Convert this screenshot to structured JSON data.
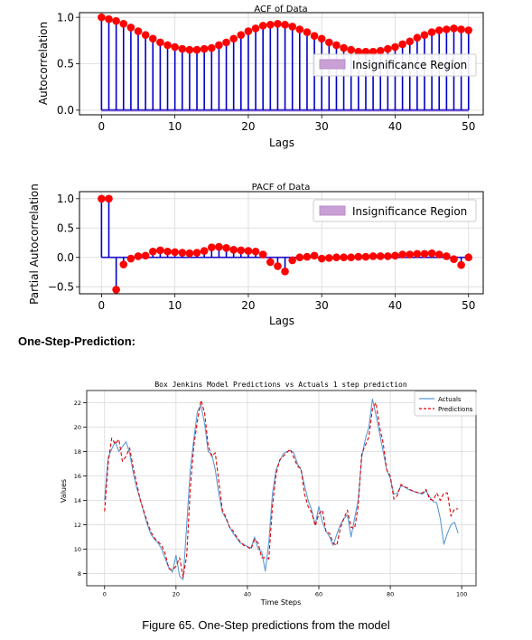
{
  "section_heading": "One-Step-Prediction:",
  "caption": "Figure 65. One-Step predictions from the model",
  "colors": {
    "stem": "#0000c8",
    "marker": "#ff0000",
    "confidence": "#c9a0d6",
    "actuals": "#5b9bd5",
    "predictions": "#e00000"
  },
  "chart_data": [
    {
      "type": "stem",
      "title": "ACF of Data",
      "xlabel": "Lags",
      "ylabel": "Autocorrelation",
      "xlim": [
        -3,
        52
      ],
      "ylim": [
        -0.05,
        1.05
      ],
      "xticks": [
        0,
        10,
        20,
        30,
        40,
        50
      ],
      "yticks": [
        0.0,
        0.5,
        1.0
      ],
      "ytick_labels": [
        "0.0",
        "0.5",
        "1.0"
      ],
      "grid": true,
      "legend": {
        "position": "right",
        "entries": [
          "Insignificance Region"
        ]
      },
      "confidence_band": [
        -0.02,
        0.02
      ],
      "x": [
        0,
        1,
        2,
        3,
        4,
        5,
        6,
        7,
        8,
        9,
        10,
        11,
        12,
        13,
        14,
        15,
        16,
        17,
        18,
        19,
        20,
        21,
        22,
        23,
        24,
        25,
        26,
        27,
        28,
        29,
        30,
        31,
        32,
        33,
        34,
        35,
        36,
        37,
        38,
        39,
        40,
        41,
        42,
        43,
        44,
        45,
        46,
        47,
        48,
        49,
        50
      ],
      "values": [
        1.0,
        0.98,
        0.96,
        0.93,
        0.89,
        0.85,
        0.81,
        0.77,
        0.73,
        0.7,
        0.68,
        0.66,
        0.65,
        0.65,
        0.66,
        0.67,
        0.7,
        0.73,
        0.77,
        0.81,
        0.85,
        0.88,
        0.91,
        0.92,
        0.93,
        0.92,
        0.9,
        0.87,
        0.84,
        0.8,
        0.77,
        0.73,
        0.7,
        0.67,
        0.65,
        0.63,
        0.63,
        0.63,
        0.64,
        0.66,
        0.68,
        0.71,
        0.74,
        0.78,
        0.81,
        0.84,
        0.86,
        0.87,
        0.88,
        0.87,
        0.86
      ]
    },
    {
      "type": "stem",
      "title": "PACF of Data",
      "xlabel": "Lags",
      "ylabel": "Partial Autocorrelation",
      "xlim": [
        -3,
        52
      ],
      "ylim": [
        -0.62,
        1.12
      ],
      "xticks": [
        0,
        10,
        20,
        30,
        40,
        50
      ],
      "yticks": [
        -0.5,
        0.0,
        0.5,
        1.0
      ],
      "ytick_labels": [
        "−0.5",
        "0.0",
        "0.5",
        "1.0"
      ],
      "grid": true,
      "legend": {
        "position": "top-right",
        "entries": [
          "Insignificance Region"
        ]
      },
      "confidence_band": [
        -0.02,
        0.02
      ],
      "x": [
        0,
        1,
        2,
        3,
        4,
        5,
        6,
        7,
        8,
        9,
        10,
        11,
        12,
        13,
        14,
        15,
        16,
        17,
        18,
        19,
        20,
        21,
        22,
        23,
        24,
        25,
        26,
        27,
        28,
        29,
        30,
        31,
        32,
        33,
        34,
        35,
        36,
        37,
        38,
        39,
        40,
        41,
        42,
        43,
        44,
        45,
        46,
        47,
        48,
        49,
        50
      ],
      "values": [
        1.0,
        1.0,
        -0.55,
        -0.12,
        -0.02,
        0.02,
        0.03,
        0.1,
        0.12,
        0.1,
        0.09,
        0.08,
        0.07,
        0.08,
        0.11,
        0.17,
        0.18,
        0.16,
        0.13,
        0.12,
        0.11,
        0.1,
        0.05,
        -0.08,
        -0.15,
        -0.24,
        -0.05,
        0.0,
        0.01,
        0.03,
        -0.02,
        -0.01,
        0.0,
        0.0,
        0.0,
        0.01,
        0.01,
        0.02,
        0.02,
        0.02,
        0.03,
        0.05,
        0.05,
        0.06,
        0.06,
        0.07,
        0.05,
        0.02,
        -0.03,
        -0.13,
        0.0
      ]
    },
    {
      "type": "line",
      "title": "Box Jenkins Model Predictions vs Actuals 1 step prediction",
      "xlabel": "Time Steps",
      "ylabel": "Values",
      "xlim": [
        -5,
        104
      ],
      "ylim": [
        7.0,
        23.0
      ],
      "xticks": [
        0,
        20,
        40,
        60,
        80,
        100
      ],
      "yticks": [
        8,
        10,
        12,
        14,
        16,
        18,
        20,
        22
      ],
      "grid": true,
      "legend": {
        "position": "top-right",
        "entries": [
          "Actuals",
          "Predictions"
        ]
      },
      "x": [
        0,
        1,
        2,
        3,
        4,
        5,
        6,
        7,
        8,
        9,
        10,
        11,
        12,
        13,
        14,
        15,
        16,
        17,
        18,
        19,
        20,
        21,
        22,
        23,
        24,
        25,
        26,
        27,
        28,
        29,
        30,
        31,
        32,
        33,
        34,
        35,
        36,
        37,
        38,
        39,
        40,
        41,
        42,
        43,
        44,
        45,
        46,
        47,
        48,
        49,
        50,
        51,
        52,
        53,
        54,
        55,
        56,
        57,
        58,
        59,
        60,
        61,
        62,
        63,
        64,
        65,
        66,
        67,
        68,
        69,
        70,
        71,
        72,
        73,
        74,
        75,
        76,
        77,
        78,
        79,
        80,
        81,
        82,
        83,
        84,
        85,
        86,
        87,
        88,
        89,
        90,
        91,
        92,
        93,
        94,
        95,
        96,
        97,
        98,
        99
      ],
      "series": [
        {
          "name": "Actuals",
          "values": [
            14.0,
            17.5,
            18.2,
            18.8,
            18.0,
            18.4,
            18.8,
            17.9,
            16.3,
            15.0,
            14.1,
            13.0,
            12.0,
            11.2,
            10.8,
            10.5,
            10.0,
            9.2,
            8.5,
            8.1,
            9.5,
            7.8,
            7.5,
            12.0,
            16.5,
            19.0,
            21.3,
            21.8,
            20.3,
            18.0,
            17.8,
            16.5,
            14.5,
            13.0,
            12.5,
            11.8,
            11.3,
            10.9,
            10.5,
            10.4,
            10.2,
            10.1,
            11.0,
            10.0,
            9.8,
            8.2,
            10.6,
            14.5,
            16.5,
            17.2,
            17.8,
            18.0,
            18.1,
            17.9,
            17.0,
            16.5,
            15.2,
            14.0,
            13.2,
            12.0,
            13.5,
            12.2,
            11.5,
            11.0,
            10.3,
            11.2,
            12.0,
            12.5,
            12.8,
            11.0,
            12.5,
            14.0,
            17.5,
            19.0,
            20.0,
            22.3,
            21.0,
            19.5,
            18.0,
            16.5,
            15.8,
            14.5,
            14.6,
            15.2,
            15.1,
            14.9,
            14.8,
            14.7,
            14.6,
            14.5,
            14.8,
            14.3,
            13.9,
            13.8,
            12.5,
            10.4,
            11.3,
            12.0,
            12.2,
            11.3
          ]
        },
        {
          "name": "Predictions",
          "values": [
            13.1,
            17.0,
            19.1,
            18.6,
            19.0,
            17.2,
            17.6,
            18.3,
            16.7,
            15.4,
            14.0,
            13.1,
            12.2,
            11.4,
            10.9,
            10.6,
            10.3,
            9.6,
            8.4,
            8.3,
            8.6,
            9.3,
            7.7,
            9.5,
            15.0,
            18.5,
            20.5,
            22.2,
            21.2,
            18.5,
            17.6,
            17.9,
            15.5,
            13.2,
            12.6,
            11.8,
            11.5,
            11.0,
            10.6,
            10.3,
            10.2,
            10.0,
            10.8,
            10.5,
            9.3,
            9.3,
            9.2,
            13.5,
            16.1,
            17.3,
            17.6,
            17.9,
            18.2,
            17.5,
            16.8,
            16.6,
            14.5,
            13.5,
            13.0,
            11.9,
            12.9,
            13.2,
            11.4,
            11.3,
            10.5,
            10.3,
            11.7,
            12.5,
            13.2,
            11.8,
            11.7,
            13.5,
            17.8,
            18.5,
            19.2,
            21.5,
            22.0,
            20.0,
            18.7,
            16.5,
            16.0,
            14.1,
            14.4,
            15.3,
            15.1,
            15.0,
            14.8,
            14.7,
            14.6,
            14.6,
            14.9,
            14.1,
            14.0,
            14.6,
            14.0,
            14.6,
            14.6,
            12.7,
            13.3,
            13.3
          ]
        }
      ]
    }
  ]
}
